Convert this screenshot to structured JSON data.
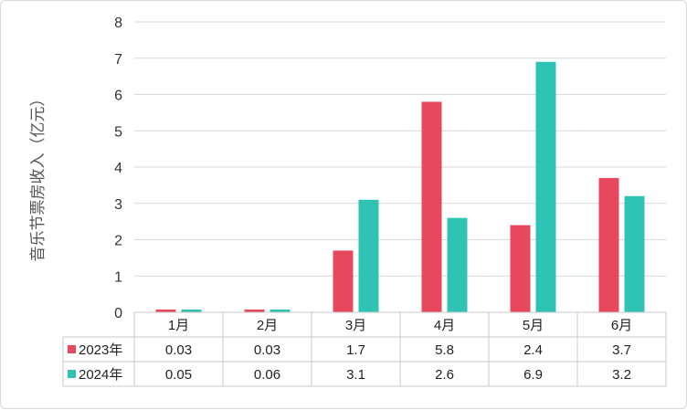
{
  "chart_data": {
    "type": "bar",
    "categories": [
      "1月",
      "2月",
      "3月",
      "4月",
      "5月",
      "6月"
    ],
    "series": [
      {
        "name": "2023年",
        "values": [
          0.03,
          0.03,
          1.7,
          5.8,
          2.4,
          3.7
        ],
        "labels": [
          "0.03",
          "0.03",
          "1.7",
          "5.8",
          "2.4",
          "3.7"
        ],
        "color": "#e8485e"
      },
      {
        "name": "2024年",
        "values": [
          0.05,
          0.06,
          3.1,
          2.6,
          6.9,
          3.2
        ],
        "labels": [
          "0.05",
          "0.06",
          "3.1",
          "2.6",
          "6.9",
          "3.2"
        ],
        "color": "#2fc3b4"
      }
    ],
    "title": "",
    "xlabel": "",
    "ylabel": "音乐节票房收入（亿元）",
    "ylim": [
      0,
      8
    ],
    "yticks": [
      "0",
      "1",
      "2",
      "3",
      "4",
      "5",
      "6",
      "7",
      "8"
    ],
    "grid": true,
    "legend": "data-table"
  }
}
